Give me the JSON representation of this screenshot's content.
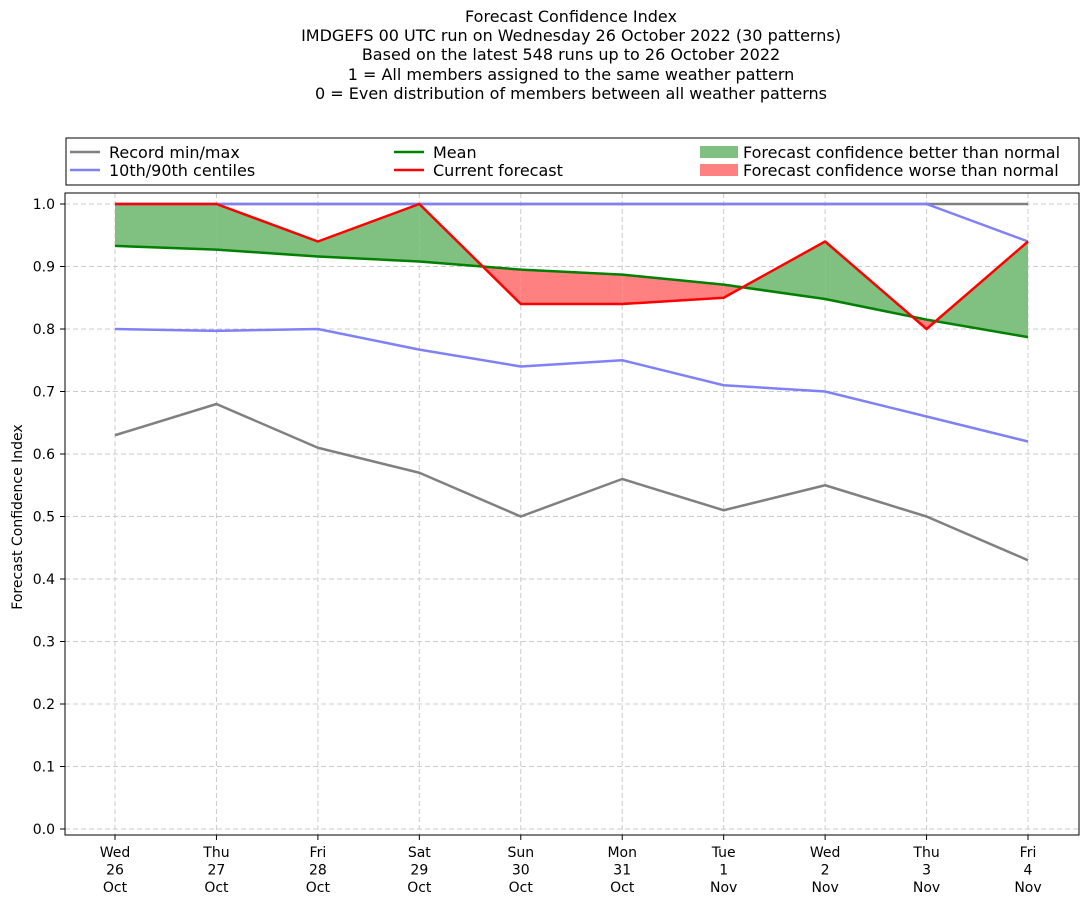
{
  "chart_data": {
    "type": "line",
    "title_lines": [
      "Forecast Confidence Index",
      "IMDGEFS 00 UTC run on Wednesday 26 October 2022 (30 patterns)",
      "Based on the latest 548 runs up to 26 October 2022",
      "1 = All members assigned to the same weather pattern",
      "0 = Even distribution of members between all weather patterns"
    ],
    "ylabel": "Forecast Confidence Index",
    "xlabel": "",
    "ylim": [
      0.0,
      1.0
    ],
    "yticks": [
      "0.0",
      "0.1",
      "0.2",
      "0.3",
      "0.4",
      "0.5",
      "0.6",
      "0.7",
      "0.8",
      "0.9",
      "1.0"
    ],
    "categories": [
      [
        "Wed",
        "26",
        "Oct"
      ],
      [
        "Thu",
        "27",
        "Oct"
      ],
      [
        "Fri",
        "28",
        "Oct"
      ],
      [
        "Sat",
        "29",
        "Oct"
      ],
      [
        "Sun",
        "30",
        "Oct"
      ],
      [
        "Mon",
        "31",
        "Oct"
      ],
      [
        "Tue",
        "1",
        "Nov"
      ],
      [
        "Wed",
        "2",
        "Nov"
      ],
      [
        "Thu",
        "3",
        "Nov"
      ],
      [
        "Fri",
        "4",
        "Nov"
      ]
    ],
    "grid": true,
    "legend": {
      "placement": "top",
      "entries": [
        {
          "label": "Record min/max",
          "kind": "line",
          "color": "#808080"
        },
        {
          "label": "10th/90th centiles",
          "kind": "line",
          "color": "#8080f7"
        },
        {
          "label": "Mean",
          "kind": "line",
          "color": "#008000"
        },
        {
          "label": "Current forecast",
          "kind": "line",
          "color": "#ff0000"
        },
        {
          "label": "Forecast confidence better than normal",
          "kind": "patch",
          "color": "#80c080"
        },
        {
          "label": "Forecast confidence worse than normal",
          "kind": "patch",
          "color": "#ff8080"
        }
      ]
    },
    "series": [
      {
        "name": "Record min/max",
        "role": "record_min",
        "color": "#808080",
        "values": [
          0.63,
          0.68,
          0.61,
          0.57,
          0.5,
          0.56,
          0.51,
          0.55,
          0.5,
          0.43
        ]
      },
      {
        "name": "Record min/max",
        "role": "record_max",
        "color": "#808080",
        "values": [
          1.0,
          1.0,
          1.0,
          1.0,
          1.0,
          1.0,
          1.0,
          1.0,
          1.0,
          1.0
        ]
      },
      {
        "name": "10th/90th centiles",
        "role": "p10",
        "color": "#8080f7",
        "values": [
          0.8,
          0.797,
          0.8,
          0.767,
          0.74,
          0.75,
          0.71,
          0.7,
          0.66,
          0.62
        ]
      },
      {
        "name": "10th/90th centiles",
        "role": "p90",
        "color": "#8080f7",
        "values": [
          1.0,
          1.0,
          1.0,
          1.0,
          1.0,
          1.0,
          1.0,
          1.0,
          1.0,
          0.94
        ]
      },
      {
        "name": "Mean",
        "role": "mean",
        "color": "#008000",
        "values": [
          0.933,
          0.927,
          0.916,
          0.908,
          0.895,
          0.887,
          0.871,
          0.848,
          0.815,
          0.787
        ]
      },
      {
        "name": "Current forecast",
        "role": "current",
        "color": "#ff0000",
        "values": [
          1.0,
          1.0,
          0.94,
          1.0,
          0.84,
          0.84,
          0.85,
          0.94,
          0.8,
          0.94
        ]
      }
    ],
    "fill_colors": {
      "better": "#80c080",
      "worse": "#ff8080"
    }
  }
}
